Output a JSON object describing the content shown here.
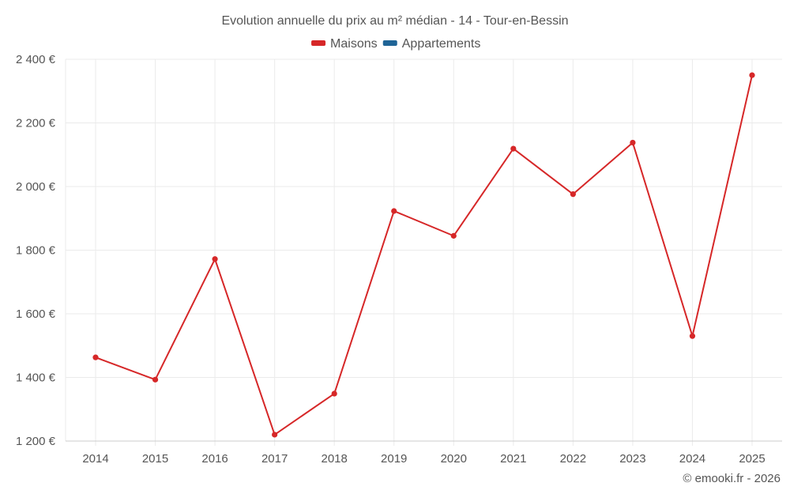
{
  "chart_data": {
    "type": "line",
    "title": "Evolution annuelle du prix au m² médian - 14 - Tour-en-Bessin",
    "categories": [
      "2014",
      "2015",
      "2016",
      "2017",
      "2018",
      "2019",
      "2020",
      "2021",
      "2022",
      "2023",
      "2024",
      "2025"
    ],
    "series": [
      {
        "name": "Maisons",
        "color": "#d62728",
        "values": [
          1463,
          1393,
          1772,
          1220,
          1349,
          1923,
          1845,
          2119,
          1976,
          2138,
          1530,
          2350
        ]
      }
    ],
    "legend": [
      {
        "name": "Maisons",
        "color": "#d62728"
      },
      {
        "name": "Appartements",
        "color": "#1f6496"
      }
    ],
    "ylim": [
      1200,
      2400
    ],
    "yticks": [
      1200,
      1400,
      1600,
      1800,
      2000,
      2200,
      2400
    ],
    "ytick_labels": [
      "1 200 €",
      "1 400 €",
      "1 600 €",
      "1 800 €",
      "2 000 €",
      "2 200 €",
      "2 400 €"
    ],
    "xlabel": "",
    "ylabel": "",
    "legend_position": "top-center",
    "grid": true
  },
  "credit": "© emooki.fr - 2026"
}
